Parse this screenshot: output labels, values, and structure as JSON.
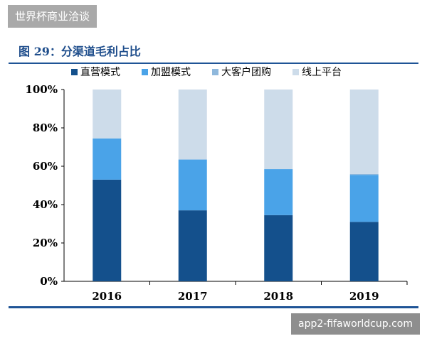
{
  "banner": {
    "text": "世界杯商业洽谈"
  },
  "watermark": {
    "text": "app2-fifaworldcup.com"
  },
  "chart_data": {
    "type": "bar",
    "stacked": true,
    "title": "图 29：分渠道毛利占比",
    "categories": [
      "2016",
      "2017",
      "2018",
      "2019"
    ],
    "ylim": [
      0,
      100
    ],
    "y_ticks": [
      "0%",
      "20%",
      "40%",
      "60%",
      "80%",
      "100%"
    ],
    "y_tick_values": [
      0,
      20,
      40,
      60,
      80,
      100
    ],
    "grid": false,
    "legend_position": "top",
    "series": [
      {
        "name": "直营模式",
        "color": "#14508c",
        "values": [
          53,
          37,
          34.5,
          31
        ]
      },
      {
        "name": "加盟模式",
        "color": "#4aa3e8",
        "values": [
          21.5,
          26.5,
          24,
          24.5
        ]
      },
      {
        "name": "大客户团购",
        "color": "#8fb8dc",
        "values": [
          0,
          0,
          0,
          0.5
        ]
      },
      {
        "name": "线上平台",
        "color": "#cddcea",
        "values": [
          25.5,
          36.5,
          41.5,
          44
        ]
      }
    ]
  }
}
